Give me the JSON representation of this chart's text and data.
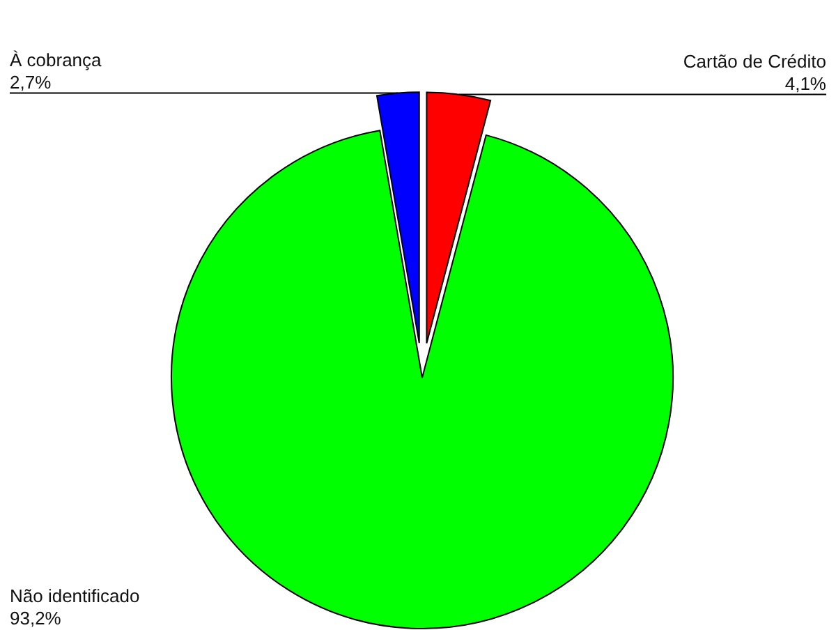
{
  "chart_data": {
    "type": "pie",
    "categories": [
      "Cartão de Crédito",
      "Não identificado",
      "À cobrança"
    ],
    "values": [
      4.1,
      93.2,
      2.7
    ],
    "colors": [
      "#ff0000",
      "#00ff00",
      "#0000ff"
    ],
    "value_labels": [
      "4,1%",
      "93,2%",
      "2,7%"
    ]
  }
}
